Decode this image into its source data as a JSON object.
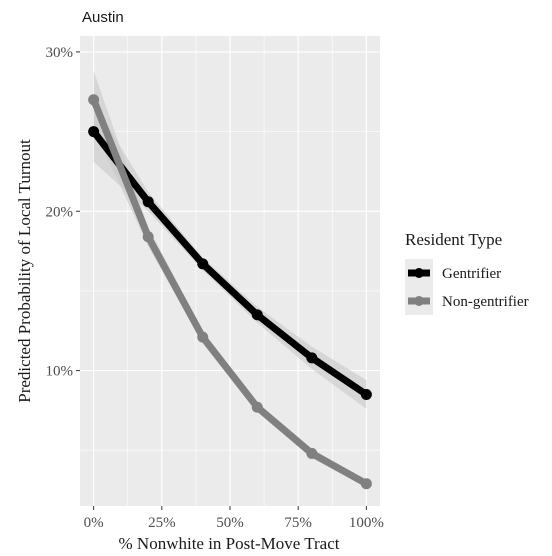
{
  "chart_data": {
    "type": "line",
    "title": "Austin",
    "xlabel": "% Nonwhite in Post-Move Tract",
    "ylabel": "Predicted Probability of Local Turnout",
    "x": [
      0,
      20,
      40,
      60,
      80,
      100
    ],
    "x_tick_values": [
      0,
      25,
      50,
      75,
      100
    ],
    "x_tick_labels": [
      "0%",
      "25%",
      "50%",
      "75%",
      "100%"
    ],
    "y_tick_values": [
      10,
      20,
      30
    ],
    "y_tick_labels": [
      "10%",
      "20%",
      "30%"
    ],
    "xlim": [
      -5,
      105
    ],
    "ylim": [
      1.5,
      31
    ],
    "grid": true,
    "legend": {
      "title": "Resident Type",
      "position": "right"
    },
    "series": [
      {
        "name": "Gentrifier",
        "color": "#000000",
        "values": [
          25.0,
          20.6,
          16.7,
          13.5,
          10.8,
          8.5
        ],
        "ci_lower": [
          23.1,
          20.0,
          16.3,
          13.0,
          10.1,
          7.6
        ],
        "ci_upper": [
          26.8,
          21.2,
          17.1,
          14.0,
          11.5,
          9.4
        ]
      },
      {
        "name": "Non-gentrifier",
        "color": "#808080",
        "values": [
          27.0,
          18.4,
          12.1,
          7.7,
          4.8,
          2.9
        ],
        "ci_lower": [
          25.2,
          17.8,
          11.7,
          7.4,
          4.5,
          2.7
        ],
        "ci_upper": [
          28.8,
          19.0,
          12.5,
          8.0,
          5.1,
          3.1
        ]
      }
    ]
  }
}
